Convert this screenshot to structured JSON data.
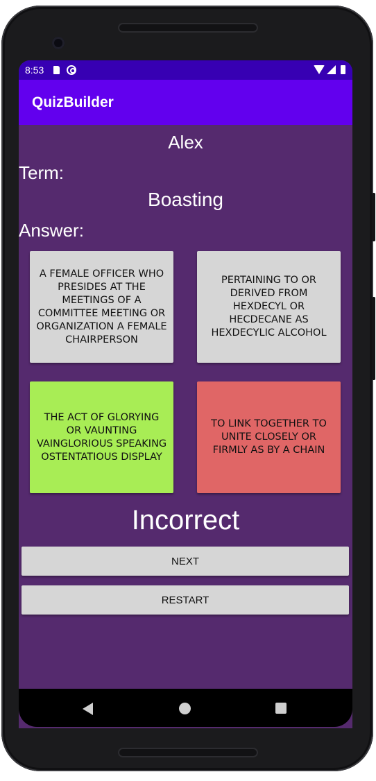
{
  "status_bar": {
    "time": "8:53",
    "icons": [
      "sd-card-icon",
      "notification-icon",
      "wifi-icon",
      "signal-icon",
      "battery-icon"
    ]
  },
  "app_bar": {
    "title": "QuizBuilder"
  },
  "quiz": {
    "user_name": "Alex",
    "term_label": "Term:",
    "term": "Boasting",
    "answer_label": "Answer:",
    "options": [
      {
        "text": "A FEMALE OFFICER WHO PRESIDES AT THE MEETINGS OF A COMMITTEE MEETING OR ORGANIZATION A FEMALE CHAIRPERSON",
        "color": "#d6d6d6"
      },
      {
        "text": "PERTAINING TO OR DERIVED FROM HEXDECYL OR HECDECANE AS HEXDECYLIC ALCOHOL",
        "color": "#d6d6d6"
      },
      {
        "text": "THE ACT OF GLORYING OR VAUNTING VAINGLORIOUS SPEAKING OSTENTATIOUS DISPLAY",
        "color": "#a8ed55"
      },
      {
        "text": "TO LINK TOGETHER TO UNITE CLOSELY OR FIRMLY AS BY A CHAIN",
        "color": "#e06666"
      }
    ],
    "result": "Incorrect",
    "next_label": "NEXT",
    "restart_label": "RESTART"
  },
  "colors": {
    "status_bar": "#3700b3",
    "app_bar": "#6200ee",
    "background": "#552a6e",
    "correct": "#a8ed55",
    "incorrect": "#e06666"
  }
}
